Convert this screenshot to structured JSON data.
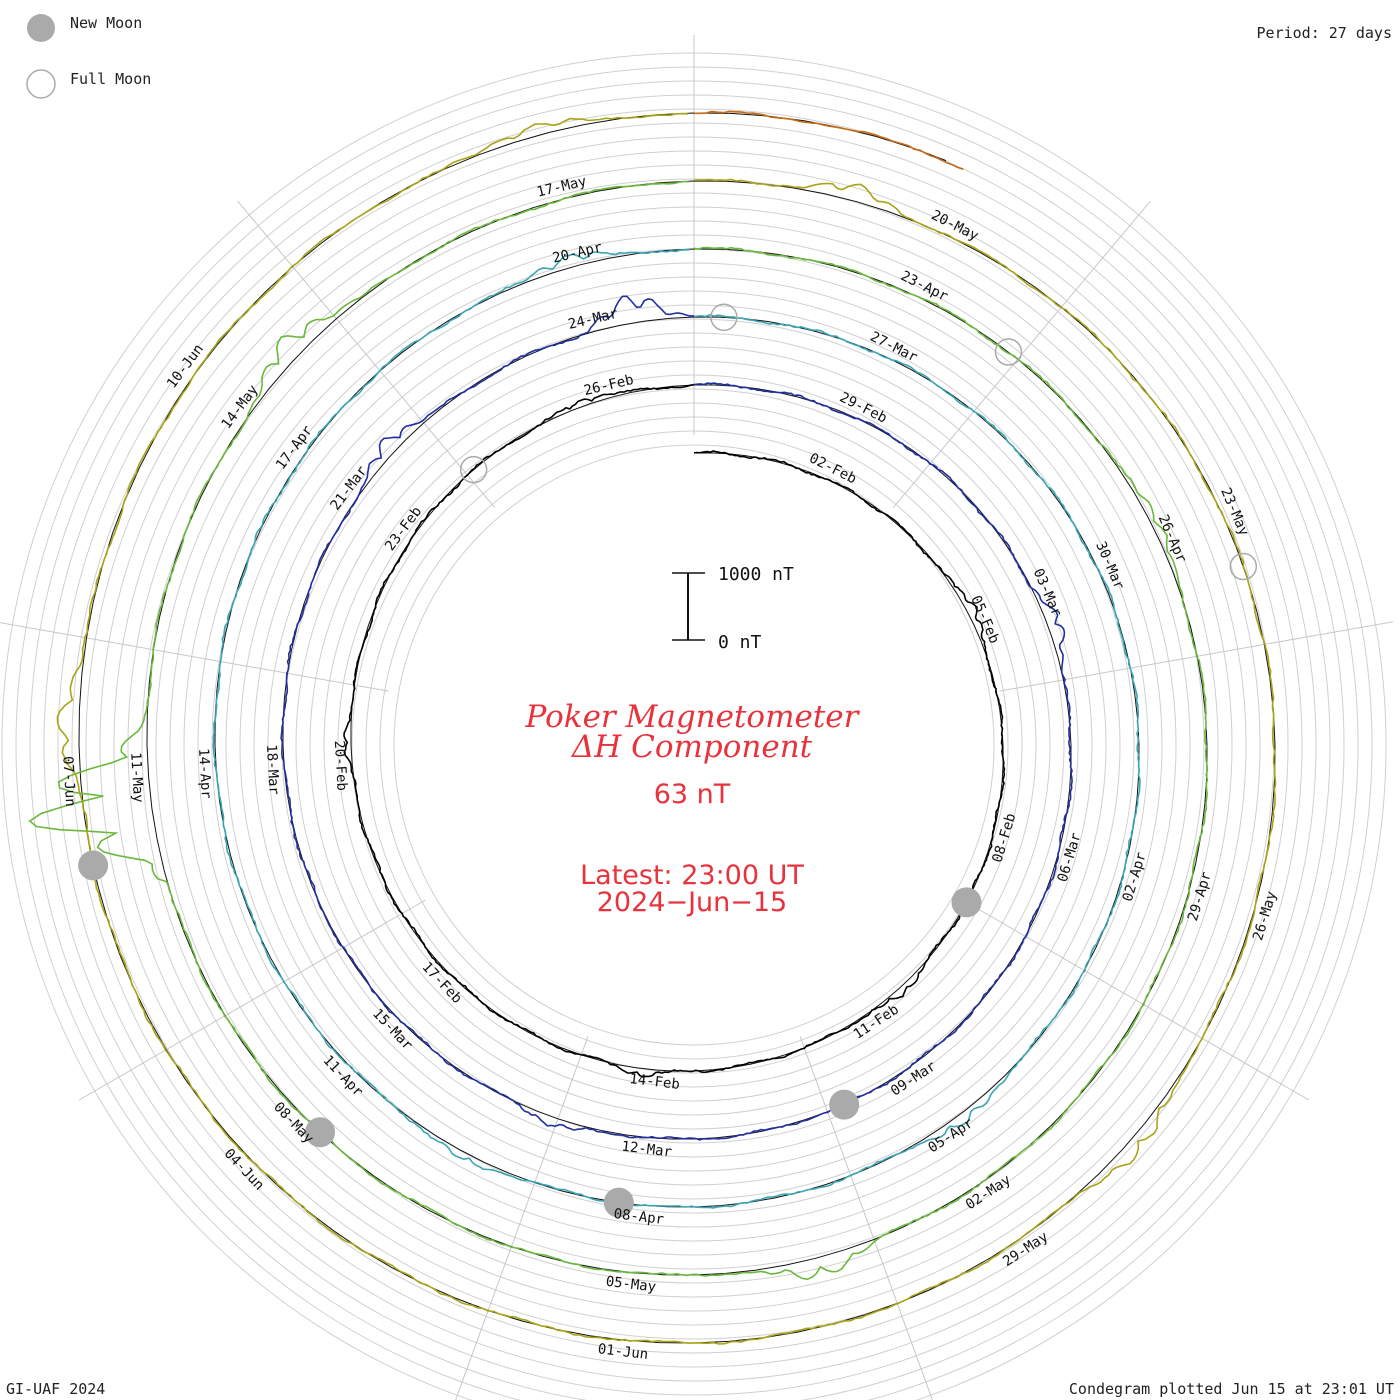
{
  "legend": {
    "new_moon": "New Moon",
    "full_moon": "Full Moon",
    "new_moon_color": "#aaaaaa",
    "full_moon_color": "#aaaaaa"
  },
  "header": {
    "period": "Period: 27 days"
  },
  "footer": {
    "left": "GI-UAF 2024",
    "right": "Condegram plotted Jun 15 at 23:01 UT"
  },
  "center": {
    "title_line1": "Poker Magnetometer",
    "title_line2": "ΔH Component",
    "value": "63 nT",
    "latest_line1": "Latest: 23:00 UT",
    "latest_line2": "2024−Jun−15",
    "text_color": "#e8323c"
  },
  "scale": {
    "top_label": "1000 nT",
    "bottom_label": "0 nT"
  },
  "chart_data": {
    "type": "line",
    "layout": "spiral-condegram",
    "period_days": 27,
    "rotations": [
      {
        "index": 0,
        "color": "#000000"
      },
      {
        "index": 1,
        "color": "#1f2fa0"
      },
      {
        "index": 2,
        "color": "#3aa6b4"
      },
      {
        "index": 3,
        "color": "#6ab83c"
      },
      {
        "index": 4,
        "color": "#a8a418"
      },
      {
        "index": 5,
        "color": "#c86a14"
      }
    ],
    "date_labels": [
      {
        "text": "02-Feb",
        "day": 2
      },
      {
        "text": "05-Feb",
        "day": 5
      },
      {
        "text": "08-Feb",
        "day": 8
      },
      {
        "text": "11-Feb",
        "day": 11
      },
      {
        "text": "14-Feb",
        "day": 14
      },
      {
        "text": "17-Feb",
        "day": 17
      },
      {
        "text": "20-Feb",
        "day": 20
      },
      {
        "text": "23-Feb",
        "day": 23
      },
      {
        "text": "26-Feb",
        "day": 26
      },
      {
        "text": "29-Feb",
        "day": 29
      },
      {
        "text": "03-Mar",
        "day": 32
      },
      {
        "text": "06-Mar",
        "day": 35
      },
      {
        "text": "09-Mar",
        "day": 38
      },
      {
        "text": "12-Mar",
        "day": 41
      },
      {
        "text": "15-Mar",
        "day": 44
      },
      {
        "text": "18-Mar",
        "day": 47
      },
      {
        "text": "21-Mar",
        "day": 50
      },
      {
        "text": "24-Mar",
        "day": 53
      },
      {
        "text": "27-Mar",
        "day": 56
      },
      {
        "text": "30-Mar",
        "day": 59
      },
      {
        "text": "02-Apr",
        "day": 62
      },
      {
        "text": "05-Apr",
        "day": 65
      },
      {
        "text": "08-Apr",
        "day": 68
      },
      {
        "text": "11-Apr",
        "day": 71
      },
      {
        "text": "14-Apr",
        "day": 74
      },
      {
        "text": "17-Apr",
        "day": 77
      },
      {
        "text": "20-Apr",
        "day": 80
      },
      {
        "text": "23-Apr",
        "day": 83
      },
      {
        "text": "26-Apr",
        "day": 86
      },
      {
        "text": "29-Apr",
        "day": 89
      },
      {
        "text": "02-May",
        "day": 92
      },
      {
        "text": "05-May",
        "day": 95
      },
      {
        "text": "08-May",
        "day": 98
      },
      {
        "text": "11-May",
        "day": 101
      },
      {
        "text": "14-May",
        "day": 104
      },
      {
        "text": "17-May",
        "day": 107
      },
      {
        "text": "20-May",
        "day": 110
      },
      {
        "text": "23-May",
        "day": 113
      },
      {
        "text": "26-May",
        "day": 116
      },
      {
        "text": "29-May",
        "day": 119
      },
      {
        "text": "01-Jun",
        "day": 122
      },
      {
        "text": "04-Jun",
        "day": 125
      },
      {
        "text": "07-Jun",
        "day": 128
      },
      {
        "text": "10-Jun",
        "day": 131
      }
    ],
    "new_moons": [
      9.0,
      38.8,
      68.2,
      97.8,
      127.4
    ],
    "full_moons": [
      24.1,
      54.3,
      83.9,
      113.4
    ],
    "series_end_day": 136.9,
    "y_scale_nT": [
      0,
      1000
    ],
    "disturbances": [
      {
        "day": 4.8,
        "amp": 180
      },
      {
        "day": 10.5,
        "amp": 120
      },
      {
        "day": 14.2,
        "amp": 110
      },
      {
        "day": 20.3,
        "amp": 90
      },
      {
        "day": 25.7,
        "amp": 120
      },
      {
        "day": 32.4,
        "amp": 220
      },
      {
        "day": 42.0,
        "amp": 140
      },
      {
        "day": 50.6,
        "amp": 260
      },
      {
        "day": 53.4,
        "amp": 420
      },
      {
        "day": 64.8,
        "amp": 180
      },
      {
        "day": 69.7,
        "amp": 140
      },
      {
        "day": 79.9,
        "amp": 200
      },
      {
        "day": 85.8,
        "amp": 160
      },
      {
        "day": 93.5,
        "amp": 320
      },
      {
        "day": 100.8,
        "amp": 1900
      },
      {
        "day": 104.6,
        "amp": 380
      },
      {
        "day": 109.2,
        "amp": 240
      },
      {
        "day": 117.9,
        "amp": 260
      },
      {
        "day": 128.4,
        "amp": 330
      },
      {
        "day": 133.9,
        "amp": 180
      }
    ]
  }
}
